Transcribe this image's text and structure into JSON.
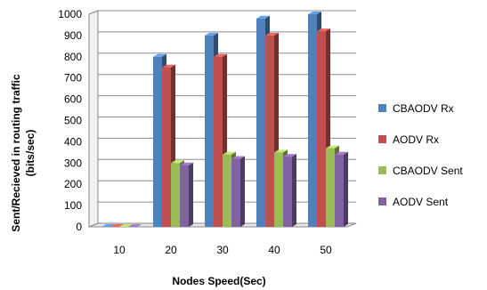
{
  "chart_data": {
    "type": "bar",
    "categories": [
      "10",
      "20",
      "30",
      "40",
      "50"
    ],
    "series": [
      {
        "name": "CBAODV Rx",
        "values": [
          0,
          800,
          900,
          980,
          1000
        ],
        "color": "#4f81bd"
      },
      {
        "name": "AODV Rx",
        "values": [
          0,
          750,
          800,
          900,
          920
        ],
        "color": "#c0504d"
      },
      {
        "name": "CBAODV Sent",
        "values": [
          0,
          300,
          340,
          350,
          370
        ],
        "color": "#9bbb59"
      },
      {
        "name": "AODV Sent",
        "values": [
          0,
          290,
          320,
          330,
          340
        ],
        "color": "#8064a2"
      }
    ],
    "xlabel": "Nodes Speed(Sec)",
    "ylabel_lines": [
      "Sent/Recieved in routing traffic",
      "(bits/sec)"
    ],
    "ylim": [
      0,
      1000
    ],
    "yticks": [
      "0",
      "100",
      "200",
      "300",
      "400",
      "500",
      "600",
      "700",
      "800",
      "900",
      "1000"
    ],
    "grid": true,
    "legend_position": "right"
  }
}
